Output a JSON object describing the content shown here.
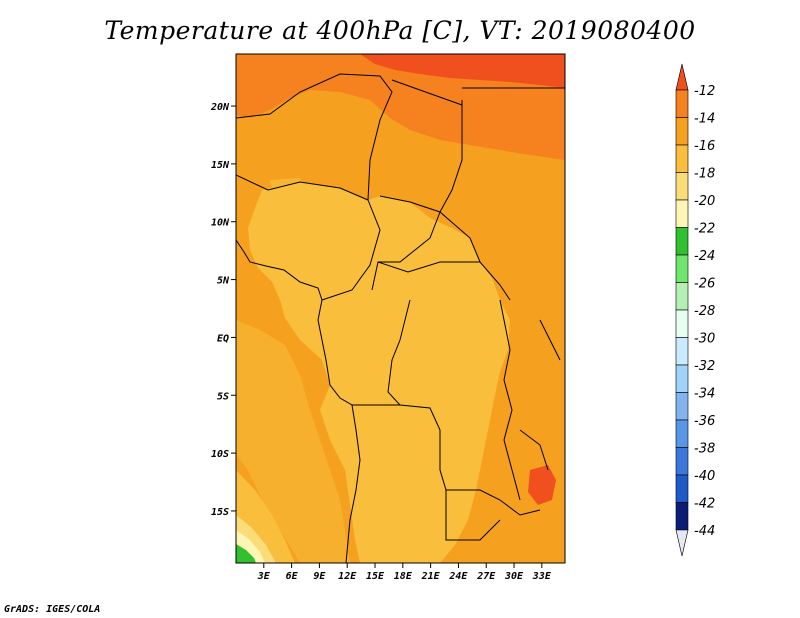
{
  "title": "Temperature at 400hPa [C], VT: 2019080400",
  "footer": "GrADS: IGES/COLA",
  "map": {
    "lon_range": [
      0,
      35.5
    ],
    "lat_range": [
      -19.5,
      24.5
    ],
    "x_ticks": [
      {
        "lon": 3,
        "label": "3E"
      },
      {
        "lon": 6,
        "label": "6E"
      },
      {
        "lon": 9,
        "label": "9E"
      },
      {
        "lon": 12,
        "label": "12E"
      },
      {
        "lon": 15,
        "label": "15E"
      },
      {
        "lon": 18,
        "label": "18E"
      },
      {
        "lon": 21,
        "label": "21E"
      },
      {
        "lon": 24,
        "label": "24E"
      },
      {
        "lon": 27,
        "label": "27E"
      },
      {
        "lon": 30,
        "label": "30E"
      },
      {
        "lon": 33,
        "label": "33E"
      }
    ],
    "y_ticks": [
      {
        "lat": 20,
        "label": "20N"
      },
      {
        "lat": 15,
        "label": "15N"
      },
      {
        "lat": 10,
        "label": "10N"
      },
      {
        "lat": 5,
        "label": "5N"
      },
      {
        "lat": 0,
        "label": "EQ"
      },
      {
        "lat": -5,
        "label": "5S"
      },
      {
        "lat": -10,
        "label": "10S"
      },
      {
        "lat": -15,
        "label": "15S"
      }
    ]
  },
  "colorbar": {
    "levels": [
      "-12",
      "-14",
      "-16",
      "-18",
      "-20",
      "-22",
      "-24",
      "-26",
      "-28",
      "-30",
      "-32",
      "-34",
      "-36",
      "-38",
      "-40",
      "-42",
      "-44"
    ],
    "colors": [
      "#f0501e",
      "#f5821e",
      "#f5a01e",
      "#f8be3c",
      "#fadc78",
      "#fff5b4",
      "#30c030",
      "#6ee66e",
      "#b4f0b4",
      "#e6fff0",
      "#c8ebff",
      "#a0d2fa",
      "#82b4f0",
      "#5a96e6",
      "#3c78dc",
      "#1e5ac8",
      "#0a1e78"
    ],
    "top_color": "#f0501e",
    "bottom_color": "#e6e6f5"
  },
  "colors": {
    "t_12": "#f0501e",
    "t_14": "#f5821e",
    "t_16": "#f5a01e",
    "t_18": "#f8be3c",
    "t_20": "#fadc78",
    "t_22": "#fff5b4",
    "t_24": "#30c030"
  }
}
